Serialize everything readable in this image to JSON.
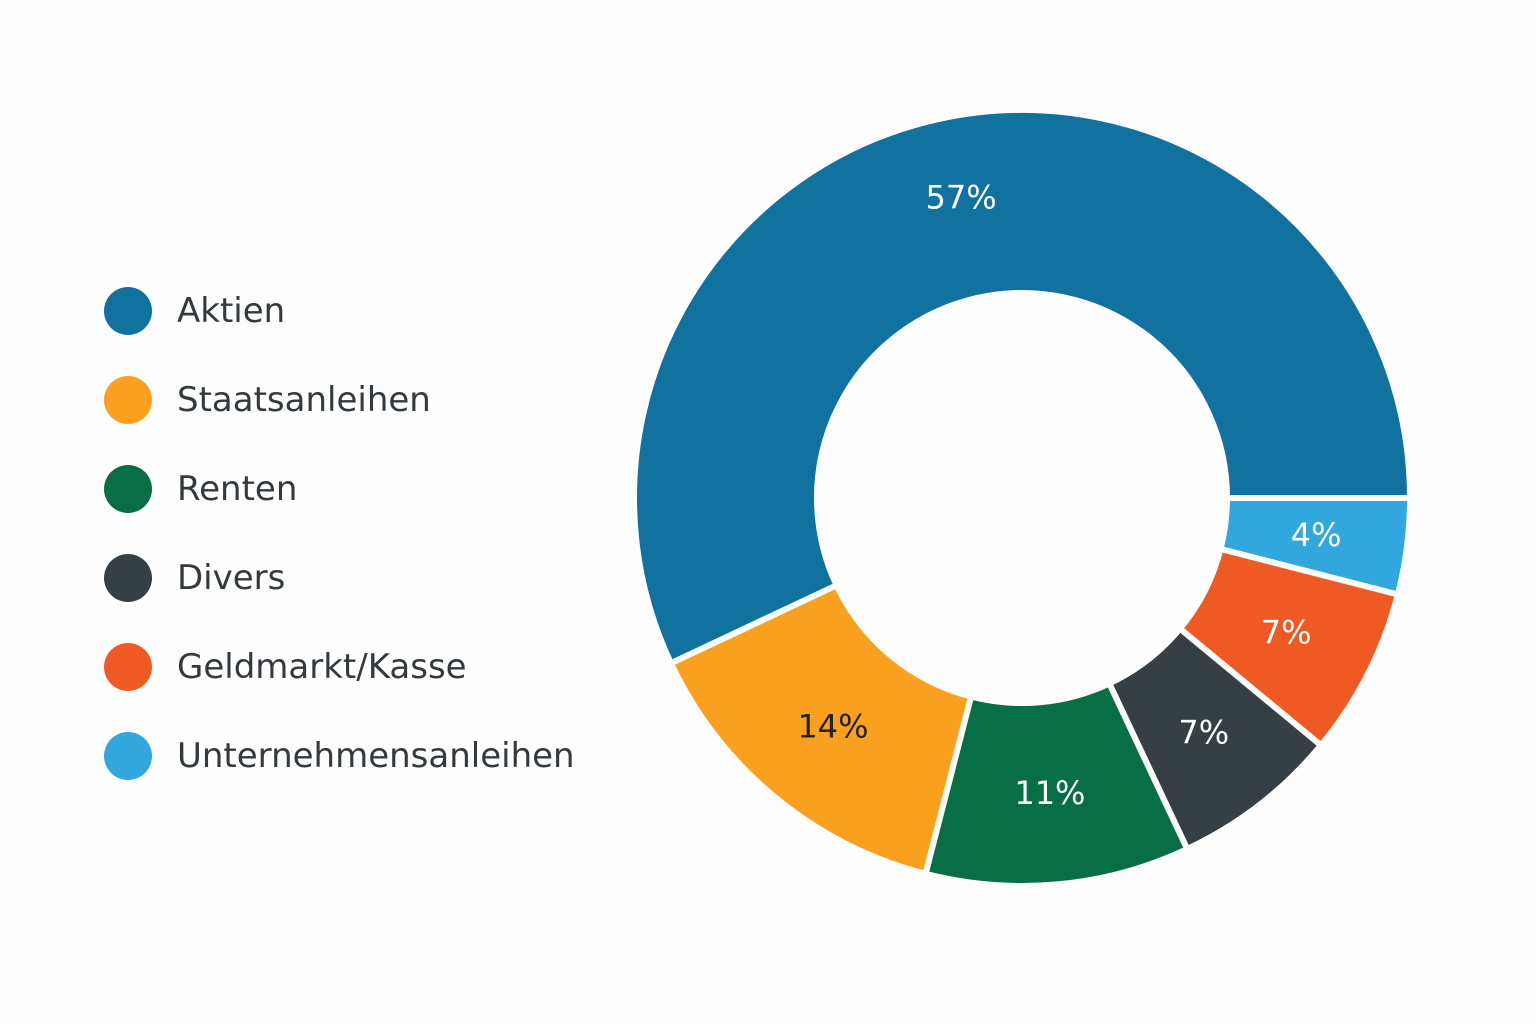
{
  "chart_data": {
    "type": "pie",
    "variant": "donut",
    "title": "",
    "legend_position": "left",
    "categories": [
      "Aktien",
      "Staatsanleihen",
      "Renten",
      "Divers",
      "Geldmarkt/Kasse",
      "Unternehmensanleihen"
    ],
    "values": [
      57,
      14,
      11,
      7,
      7,
      4
    ],
    "labels": [
      "57%",
      "14%",
      "11%",
      "7%",
      "7%",
      "4%"
    ],
    "colors": [
      "#1172a0",
      "#f9a11e",
      "#076e45",
      "#353f44",
      "#ef5a24",
      "#31a7dd"
    ],
    "label_colors": [
      "#ffffff",
      "#222222",
      "#ffffff",
      "#ffffff",
      "#ffffff",
      "#ffffff"
    ]
  }
}
